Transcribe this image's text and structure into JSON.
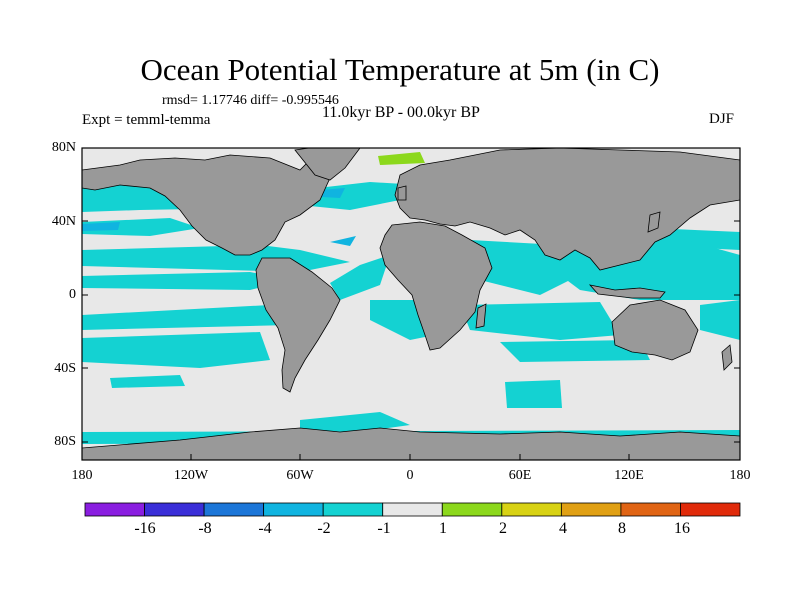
{
  "title": "Ocean Potential Temperature at 5m (in C)",
  "stats": "rmsd= 1.17746 diff= -0.995546",
  "experiment": "Expt = temml-temma",
  "period": "11.0kyr BP - 00.0kyr BP",
  "season": "DJF",
  "lat_labels": [
    "80N",
    "40N",
    "0",
    "40S",
    "80S"
  ],
  "lon_labels": [
    "180",
    "120W",
    "60W",
    "0",
    "60E",
    "120E",
    "180"
  ],
  "colorbar": {
    "labels": [
      "-16",
      "-8",
      "-4",
      "-2",
      "-1",
      "1",
      "2",
      "4",
      "8",
      "16"
    ],
    "colors": [
      "#8a1ee0",
      "#3a2ed8",
      "#1c76d8",
      "#10b4e0",
      "#14d2d2",
      "#e8e8e8",
      "#8cd81c",
      "#d8d214",
      "#e0a014",
      "#e06414",
      "#e02a0a"
    ]
  },
  "map_colors": {
    "land": "#999999",
    "ocean_neutral": "#e8e8e8",
    "cool_light": "#14d2d2",
    "cool_mid": "#10b4e0",
    "cool_strong": "#1c76d8",
    "warm_light": "#8cd81c"
  }
}
